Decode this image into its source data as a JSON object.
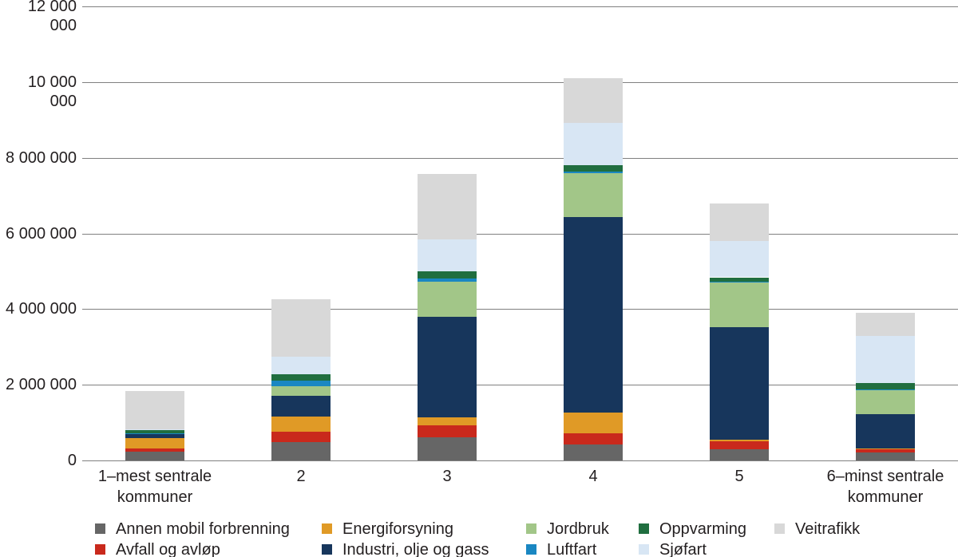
{
  "chart_data": {
    "type": "bar",
    "variant": "stacked",
    "title": "",
    "xlabel": "",
    "ylabel": "",
    "categories": [
      "1–mest sentrale\nkommuner",
      "2",
      "3",
      "4",
      "5",
      "6–minst sentrale\nkommuner"
    ],
    "series": [
      {
        "name": "Annen mobil forbrenning",
        "color": "#666666",
        "values": [
          230000,
          485000,
          610000,
          420000,
          300000,
          210000
        ]
      },
      {
        "name": "Avfall og avløp",
        "color": "#c9291c",
        "values": [
          85000,
          275000,
          315000,
          295000,
          210000,
          85000
        ]
      },
      {
        "name": "Energiforsyning",
        "color": "#e09a26",
        "values": [
          270000,
          400000,
          210000,
          550000,
          30000,
          20000
        ]
      },
      {
        "name": "Industri, olje og gass",
        "color": "#17365c",
        "values": [
          105000,
          550000,
          2660000,
          5170000,
          2980000,
          900000
        ]
      },
      {
        "name": "Jordbruk",
        "color": "#a2c688",
        "values": [
          20000,
          255000,
          930000,
          1160000,
          1200000,
          650000
        ]
      },
      {
        "name": "Luftfart",
        "color": "#1a87c2",
        "values": [
          10000,
          150000,
          80000,
          30000,
          10000,
          5000
        ]
      },
      {
        "name": "Oppvarming",
        "color": "#206e3f",
        "values": [
          85000,
          170000,
          190000,
          170000,
          110000,
          170000
        ]
      },
      {
        "name": "Sjøfart",
        "color": "#d8e6f4",
        "values": [
          20000,
          465000,
          845000,
          1120000,
          950000,
          1245000
        ]
      },
      {
        "name": "Veitrafikk",
        "color": "#d8d8d8",
        "values": [
          1010000,
          1500000,
          1730000,
          1180000,
          1010000,
          610000
        ]
      }
    ],
    "totals": [
      1835000,
      4250000,
      7570000,
      10095000,
      6800000,
      3895000
    ],
    "y_ticks": [
      "0",
      "2 000 000",
      "4 000 000",
      "6 000 000",
      "8 000 000",
      "10 000 000",
      "12 000 000"
    ],
    "ylim": [
      0,
      12000000
    ],
    "grid": true,
    "legend_position": "bottom",
    "colors": {
      "text": "#231f20",
      "grid": "#808080",
      "background": "#ffffff"
    }
  }
}
